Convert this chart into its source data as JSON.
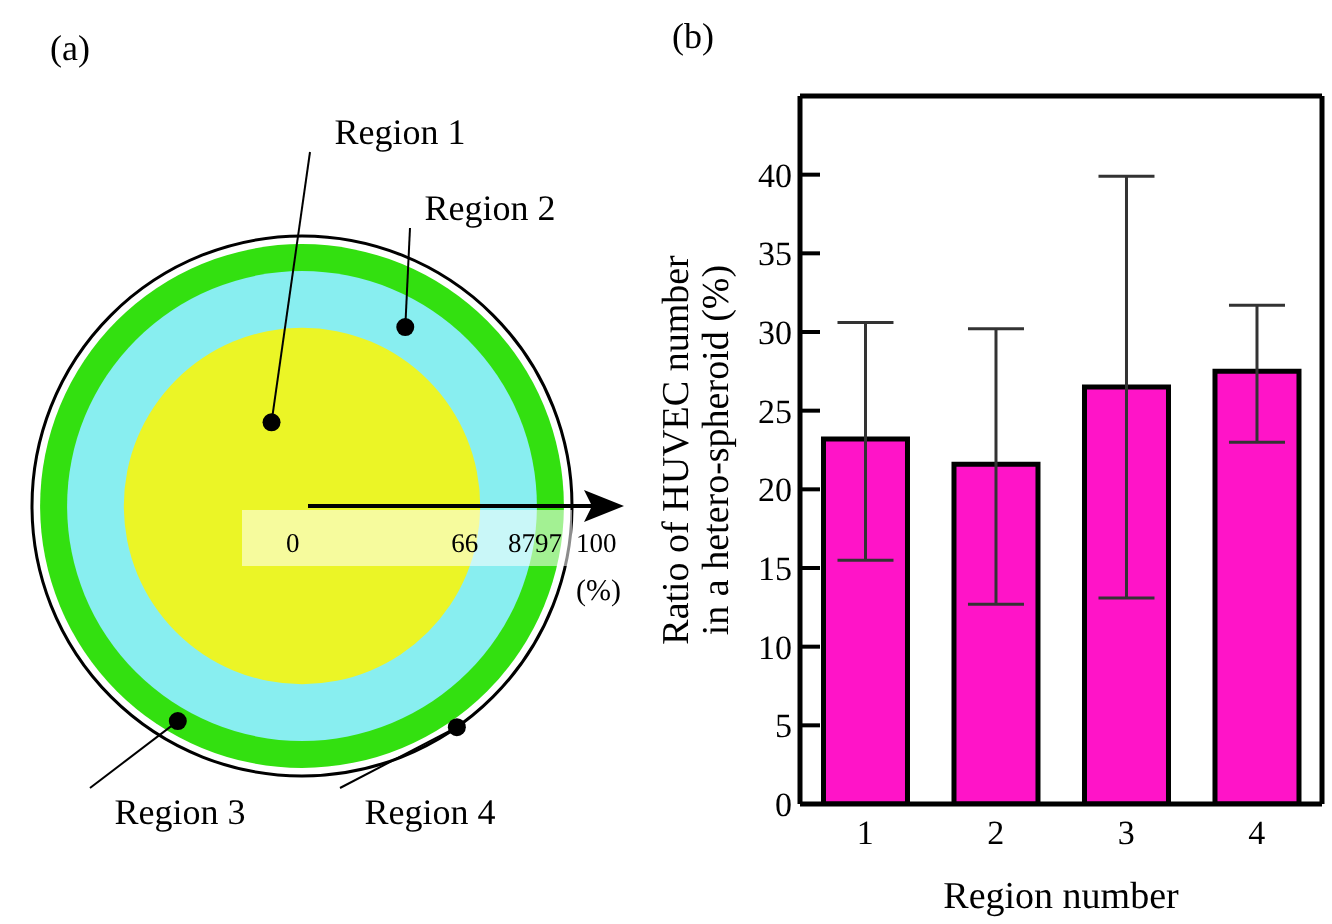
{
  "chart_data": [
    {
      "type": "other",
      "title": "(a)",
      "categories": [
        "Region 1",
        "Region 2",
        "Region 3",
        "Region 4"
      ],
      "colors": [
        "#ebf526",
        "#88eef0",
        "#33e010",
        "#ffffff"
      ],
      "annotations": [
        "0",
        "66",
        "87",
        "97",
        "100"
      ],
      "xlabel": "(%)"
    },
    {
      "type": "bar",
      "title": "(b)",
      "categories": [
        "1",
        "2",
        "3",
        "4"
      ],
      "values": [
        23.2,
        21.6,
        26.5,
        27.5
      ],
      "errors": [
        [
          15.5,
          30.6
        ],
        [
          12.7,
          30.2
        ],
        [
          13.1,
          39.9
        ],
        [
          23.0,
          31.7
        ]
      ],
      "color": "#ff14c8",
      "xlabel": "Region number",
      "ylabel": "Ratio of HUVEC number\nin a hetero-spheroid (%)",
      "ylim": [
        0,
        45
      ],
      "yticks": [
        0,
        5,
        10,
        15,
        20,
        25,
        30,
        35,
        40
      ],
      "grid": false,
      "legend": false
    }
  ]
}
